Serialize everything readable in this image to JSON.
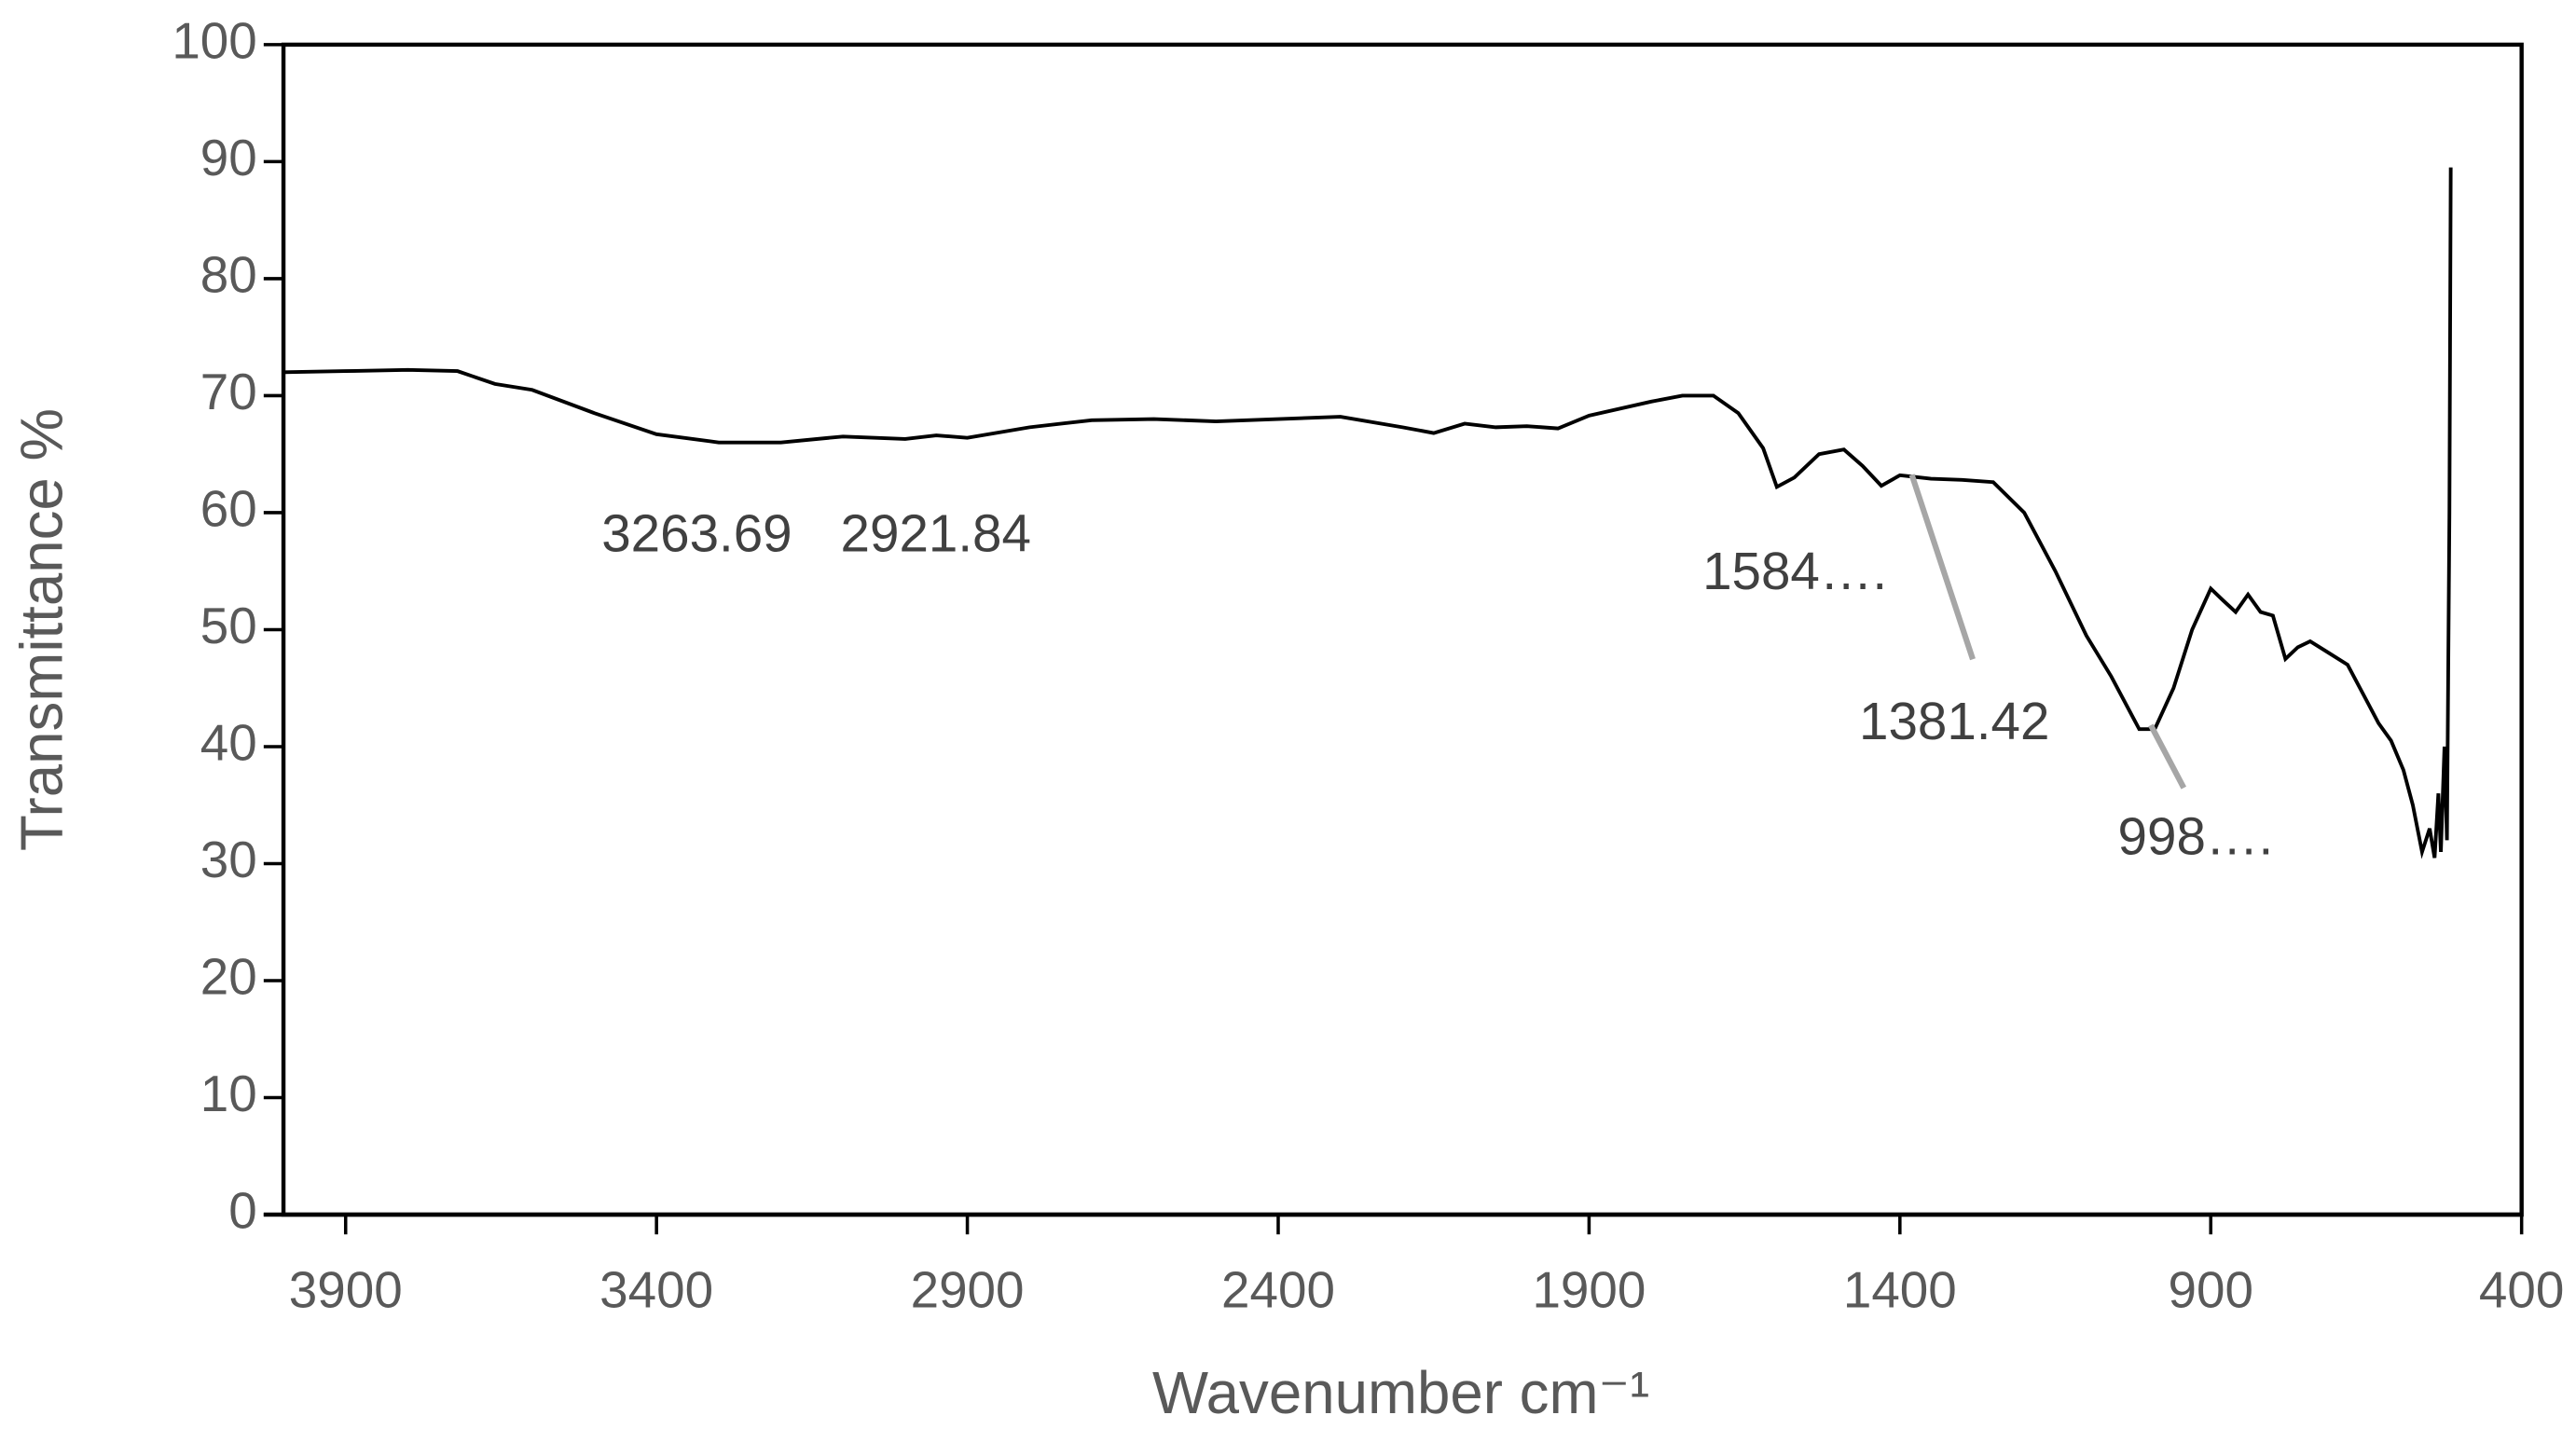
{
  "chart_data": {
    "type": "line",
    "xlabel": "Wavenumber cm⁻¹",
    "ylabel": "Transmittance %",
    "xlim": [
      4000,
      400
    ],
    "ylim": [
      0,
      100
    ],
    "xticks": [
      3900,
      3400,
      2900,
      2400,
      1900,
      1400,
      900,
      400
    ],
    "yticks": [
      0,
      10,
      20,
      30,
      40,
      50,
      60,
      70,
      80,
      90,
      100
    ],
    "annotations": [
      "3263.69",
      "2921.84",
      "1584….",
      "1381.42",
      "998…."
    ],
    "series": [
      {
        "name": "Transmittance",
        "color": "#000000",
        "x": [
          4000,
          3900,
          3800,
          3720,
          3660,
          3600,
          3500,
          3400,
          3300,
          3200,
          3100,
          3000,
          2950,
          2900,
          2800,
          2700,
          2600,
          2500,
          2400,
          2300,
          2200,
          2150,
          2100,
          2050,
          2000,
          1950,
          1900,
          1800,
          1750,
          1700,
          1660,
          1620,
          1598,
          1570,
          1530,
          1490,
          1460,
          1430,
          1400,
          1350,
          1300,
          1250,
          1200,
          1150,
          1100,
          1060,
          1030,
          1015,
          990,
          960,
          930,
          900,
          880,
          860,
          840,
          820,
          800,
          780,
          760,
          740,
          710,
          680,
          650,
          630,
          610,
          590,
          575,
          560,
          548,
          540,
          534,
          530,
          524,
          520,
          516,
          514
        ],
        "values": [
          72,
          72.1,
          72.2,
          72.1,
          71,
          70.5,
          68.5,
          66.7,
          66,
          66,
          66.5,
          66.3,
          66.6,
          66.4,
          67.3,
          67.9,
          68,
          67.8,
          68,
          68.2,
          67.3,
          66.8,
          67.6,
          67.3,
          67.4,
          67.2,
          68.3,
          69.5,
          70,
          70,
          68.5,
          65.5,
          62.2,
          63,
          65,
          65.4,
          64,
          62.3,
          63.2,
          62.9,
          62.8,
          62.6,
          60,
          55,
          49.5,
          46,
          43,
          41.5,
          41.5,
          45,
          50,
          53.5,
          52.5,
          51.5,
          53,
          51.5,
          51.2,
          47.5,
          48.5,
          49,
          48,
          47,
          44,
          42,
          40.5,
          38,
          35,
          31,
          33,
          30.5,
          36,
          31,
          40,
          32,
          60,
          89.5
        ]
      }
    ]
  }
}
